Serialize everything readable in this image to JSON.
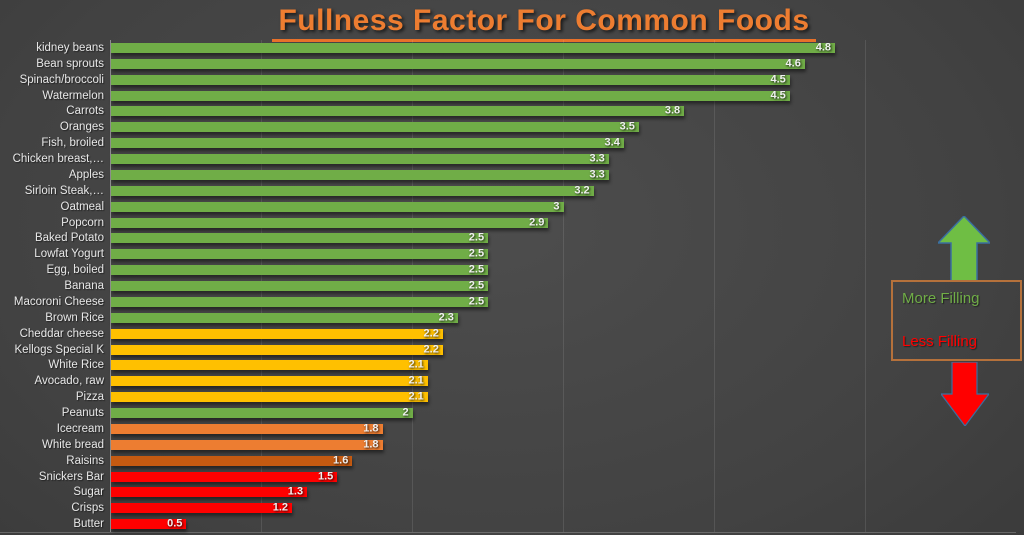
{
  "title": "Fullness Factor For Common Foods",
  "chart_data": {
    "type": "bar",
    "orientation": "horizontal",
    "title": "Fullness Factor For Common Foods",
    "xlabel": "",
    "ylabel": "",
    "xlim": [
      0,
      6
    ],
    "gridlines_x": [
      1,
      2,
      3,
      4,
      5
    ],
    "legend_position": "right",
    "categories": [
      "kidney beans",
      "Bean sprouts",
      "Spinach/broccoli",
      "Watermelon",
      "Carrots",
      "Oranges",
      "Fish, broiled",
      "Chicken breast,…",
      "Apples",
      "Sirloin  Steak,…",
      "Oatmeal",
      "Popcorn",
      "Baked Potato",
      "Lowfat Yogurt",
      "Egg, boiled",
      "Banana",
      "Macoroni Cheese",
      "Brown Rice",
      "Cheddar cheese",
      "Kellogs Special K",
      "White Rice",
      "Avocado, raw",
      "Pizza",
      "Peanuts",
      "Icecream",
      "White bread",
      "Raisins",
      "Snickers Bar",
      "Sugar",
      "Crisps",
      "Butter"
    ],
    "values": [
      4.8,
      4.6,
      4.5,
      4.5,
      3.8,
      3.5,
      3.4,
      3.3,
      3.3,
      3.2,
      3,
      2.9,
      2.5,
      2.5,
      2.5,
      2.5,
      2.5,
      2.3,
      2.2,
      2.2,
      2.1,
      2.1,
      2.1,
      2,
      1.8,
      1.8,
      1.6,
      1.5,
      1.3,
      1.2,
      0.5
    ],
    "value_labels": [
      "4.8",
      "4.6",
      "4.5",
      "4.5",
      "3.8",
      "3.5",
      "3.4",
      "3.3",
      "3.3",
      "3.2",
      "3",
      "2.9",
      "2.5",
      "2.5",
      "2.5",
      "2.5",
      "2.5",
      "2.3",
      "2.2",
      "2.2",
      "2.1",
      "2.1",
      "2.1",
      "2",
      "1.8",
      "1.8",
      "1.6",
      "1.5",
      "1.3",
      "1.2",
      "0.5"
    ],
    "bar_colors": [
      "#70AD47",
      "#70AD47",
      "#70AD47",
      "#70AD47",
      "#70AD47",
      "#70AD47",
      "#70AD47",
      "#70AD47",
      "#70AD47",
      "#70AD47",
      "#70AD47",
      "#70AD47",
      "#70AD47",
      "#70AD47",
      "#70AD47",
      "#70AD47",
      "#70AD47",
      "#70AD47",
      "#FFC000",
      "#FFC000",
      "#FFC000",
      "#FFC000",
      "#FFC000",
      "#70AD47",
      "#ED7D31",
      "#ED7D31",
      "#C55A11",
      "#FF0000",
      "#FF0000",
      "#FF0000",
      "#FF0000"
    ]
  },
  "legend": {
    "more_label": "More Filling",
    "less_label": "Less Filling",
    "more_color": "#70AD47",
    "less_color": "#FF0000",
    "box_border_color": "#B5713B",
    "up_arrow_icon": "up-arrow",
    "up_arrow_color": "#6FBE44",
    "down_arrow_icon": "down-arrow",
    "down_arrow_color": "#FF0000",
    "arrow_outline_color": "#3A6FA0"
  },
  "colors": {
    "title": "#ED7D31",
    "background": "#424242",
    "category_label": "#E8E8E8",
    "value_label": "#F0F0F0",
    "gridline": "rgba(255,255,255,0.10)"
  }
}
